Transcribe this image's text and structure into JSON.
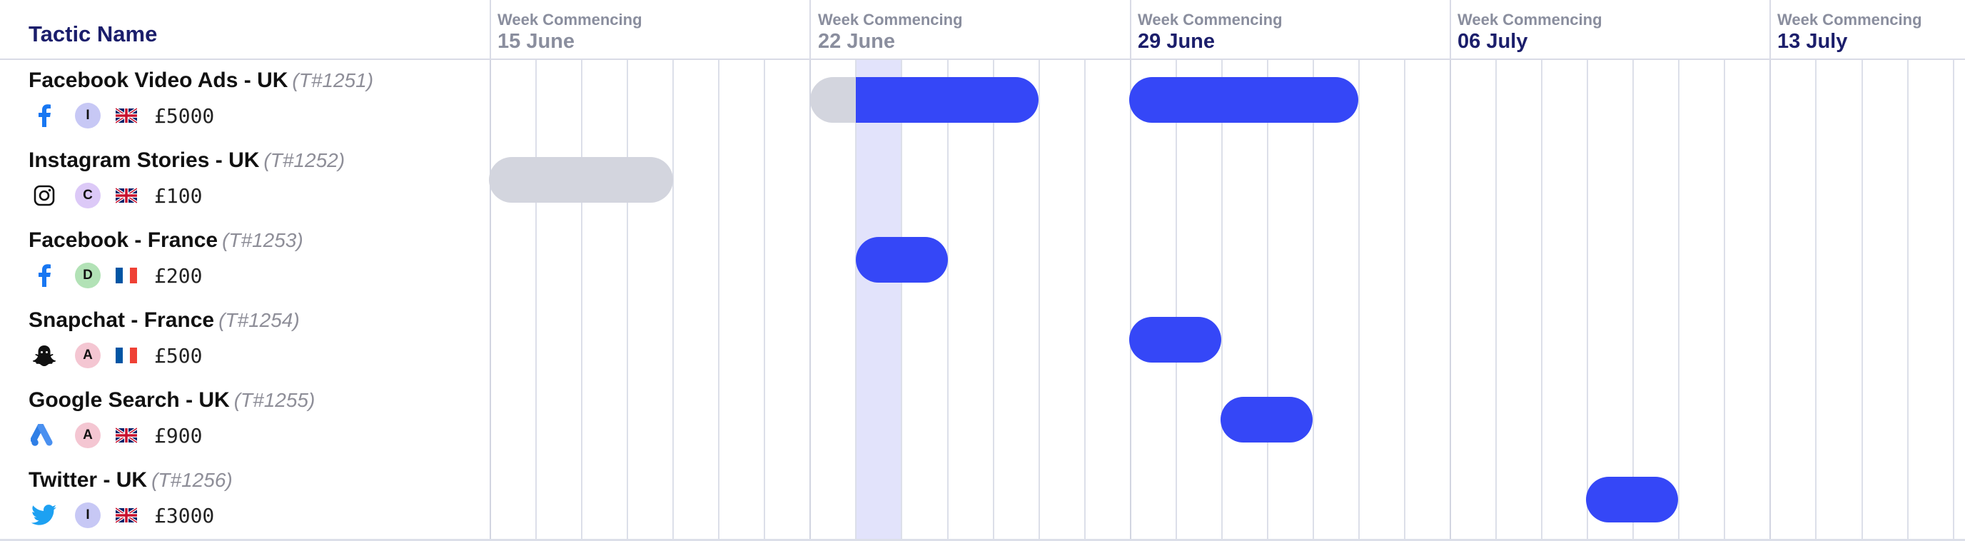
{
  "header": {
    "tactic_column": "Tactic Name",
    "weeks": [
      {
        "label": "Week Commencing",
        "date": "15 June"
      },
      {
        "label": "Week Commencing",
        "date": "22 June"
      },
      {
        "label": "Week Commencing",
        "date": "29 June"
      },
      {
        "label": "Week Commencing",
        "date": "06 July"
      },
      {
        "label": "Week Commencing",
        "date": "13 July"
      }
    ]
  },
  "colors": {
    "active_bar": "#3547f7",
    "draft_bar": "#d3d5de",
    "today_highlight": "#e2e3fb",
    "header_text": "#1b1e6b"
  },
  "tactics": [
    {
      "name": "Facebook Video Ads - UK",
      "id": "(T#1251)",
      "platform_icon": "facebook-icon",
      "owner_initial": "I",
      "owner_color": "#c7c8f5",
      "country_flag": "uk-flag-icon",
      "budget": "£5000"
    },
    {
      "name": "Instagram Stories - UK",
      "id": "(T#1252)",
      "platform_icon": "instagram-icon",
      "owner_initial": "C",
      "owner_color": "#dcc9f7",
      "country_flag": "uk-flag-icon",
      "budget": "£100"
    },
    {
      "name": "Facebook - France",
      "id": "(T#1253)",
      "platform_icon": "facebook-icon",
      "owner_initial": "D",
      "owner_color": "#b2e2b6",
      "country_flag": "france-flag-icon",
      "budget": "£200"
    },
    {
      "name": "Snapchat - France",
      "id": "(T#1254)",
      "platform_icon": "snapchat-icon",
      "owner_initial": "A",
      "owner_color": "#f4c6d2",
      "country_flag": "france-flag-icon",
      "budget": "£500"
    },
    {
      "name": "Google Search - UK",
      "id": "(T#1255)",
      "platform_icon": "google-ads-icon",
      "owner_initial": "A",
      "owner_color": "#f4c6d2",
      "country_flag": "uk-flag-icon",
      "budget": "£900"
    },
    {
      "name": "Twitter - UK",
      "id": "(T#1256)",
      "platform_icon": "twitter-icon",
      "owner_initial": "I",
      "owner_color": "#c7c8f5",
      "country_flag": "uk-flag-icon",
      "budget": "£3000"
    }
  ]
}
